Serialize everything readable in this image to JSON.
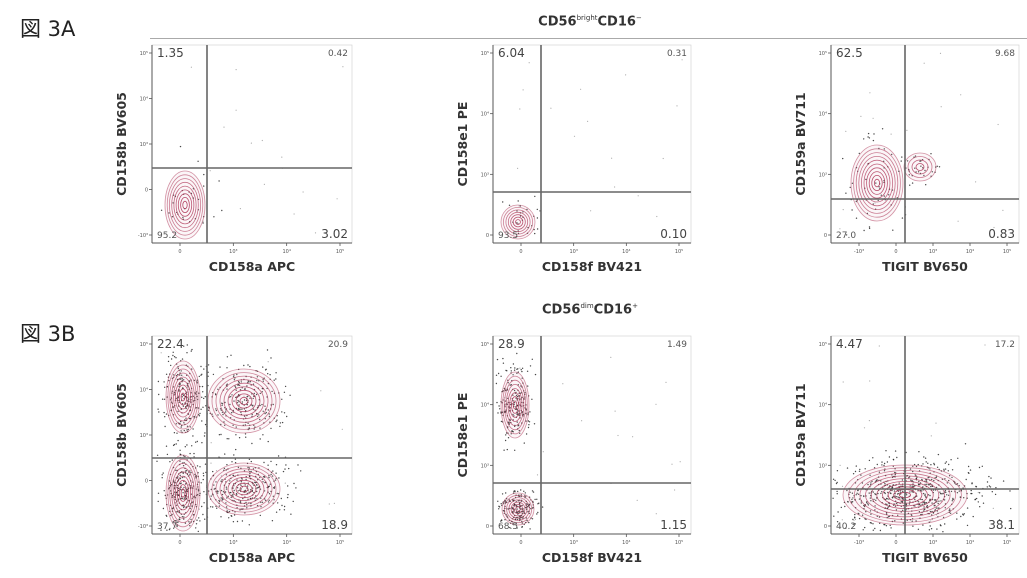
{
  "figure_labels": [
    "図 3A",
    "図 3B"
  ],
  "headers": [
    {
      "base": "CD56",
      "sup": "bright",
      "base2": "CD16",
      "sup2": "−"
    },
    {
      "base": "CD56",
      "sup": "dim",
      "base2": "CD16",
      "sup2": "+"
    }
  ],
  "colors": {
    "contour": "#b03a5b",
    "fill": "#d9a7b6",
    "dots": "#1a1a1a",
    "gate": "#666666",
    "frame": "#555555"
  },
  "chart_data": [
    {
      "type": "scatter",
      "row": "A",
      "xlabel": "CD158a APC",
      "ylabel": "CD158b BV605",
      "x_ticks": [
        "0",
        "10³",
        "10⁴",
        "10⁵"
      ],
      "y_ticks": [
        "-10³",
        "0",
        "10³",
        "10⁴",
        "10⁵"
      ],
      "quadrants": {
        "top_left": "1.35",
        "top_right": "0.42",
        "bottom_left": "95.2",
        "bottom_right": "3.02"
      },
      "populations": [
        {
          "x": 0,
          "y": 0,
          "label": "main"
        }
      ]
    },
    {
      "type": "scatter",
      "row": "A",
      "xlabel": "CD158f BV421",
      "ylabel": "CD158e1 PE",
      "x_ticks": [
        "0",
        "10³",
        "10⁴",
        "10⁵"
      ],
      "y_ticks": [
        "0",
        "10³",
        "10⁴",
        "10⁵"
      ],
      "quadrants": {
        "top_left": "6.04",
        "top_right": "0.31",
        "bottom_left": "93.5",
        "bottom_right": "0.10"
      },
      "populations": [
        {
          "x": 0,
          "y": 0,
          "label": "main"
        }
      ]
    },
    {
      "type": "scatter",
      "row": "A",
      "xlabel": "TIGIT BV650",
      "ylabel": "CD159a BV711",
      "x_ticks": [
        "-10³",
        "0",
        "10³",
        "10⁴",
        "10⁵"
      ],
      "y_ticks": [
        "0",
        "10³",
        "10⁴",
        "10⁵"
      ],
      "quadrants": {
        "top_left": "62.5",
        "top_right": "9.68",
        "bottom_left": "27.0",
        "bottom_right": "0.83"
      },
      "populations": [
        {
          "x": 0,
          "y": 500,
          "label": "main"
        }
      ]
    },
    {
      "type": "scatter",
      "row": "B",
      "xlabel": "CD158a APC",
      "ylabel": "CD158b BV605",
      "x_ticks": [
        "0",
        "10³",
        "10⁴",
        "10⁵"
      ],
      "y_ticks": [
        "-10³",
        "0",
        "10³",
        "10⁴",
        "10⁵"
      ],
      "quadrants": {
        "top_left": "22.4",
        "top_right": "20.9",
        "bottom_left": "37.7",
        "bottom_right": "18.9"
      },
      "populations": [
        {
          "label": "4 populations"
        }
      ]
    },
    {
      "type": "scatter",
      "row": "B",
      "xlabel": "CD158f BV421",
      "ylabel": "CD158e1 PE",
      "x_ticks": [
        "0",
        "10³",
        "10⁴",
        "10⁵"
      ],
      "y_ticks": [
        "0",
        "10³",
        "10⁴",
        "10⁵"
      ],
      "quadrants": {
        "top_left": "28.9",
        "top_right": "1.49",
        "bottom_left": "68.5",
        "bottom_right": "1.15"
      },
      "populations": [
        {
          "label": "2 populations"
        }
      ]
    },
    {
      "type": "scatter",
      "row": "B",
      "xlabel": "TIGIT BV650",
      "ylabel": "CD159a BV711",
      "x_ticks": [
        "-10³",
        "0",
        "10³",
        "10⁴",
        "10⁵"
      ],
      "y_ticks": [
        "0",
        "10³",
        "10⁴",
        "10⁵"
      ],
      "quadrants": {
        "top_left": "4.47",
        "top_right": "17.2",
        "bottom_left": "40.2",
        "bottom_right": "38.1"
      },
      "populations": [
        {
          "label": "1 population"
        }
      ]
    }
  ]
}
